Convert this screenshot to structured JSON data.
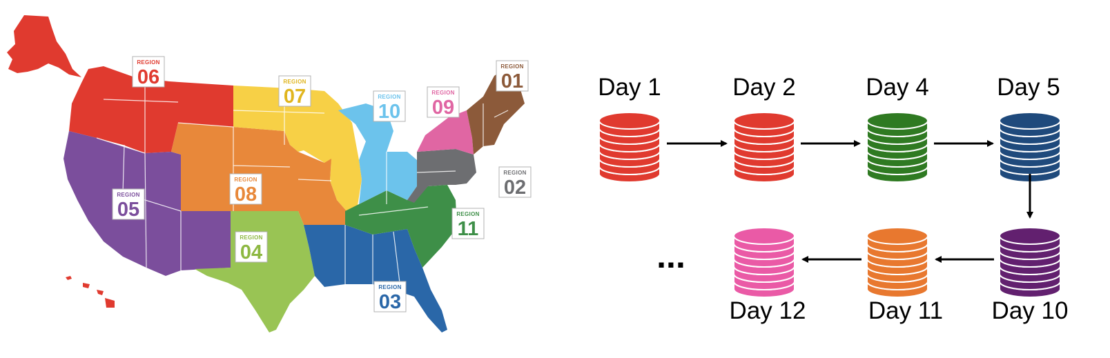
{
  "map": {
    "region_word": "REGION",
    "regions": [
      {
        "number": "01",
        "color": "#8c5a3a"
      },
      {
        "number": "02",
        "color": "#6d6e71"
      },
      {
        "number": "03",
        "color": "#2a67a8"
      },
      {
        "number": "04",
        "color": "#99c454"
      },
      {
        "number": "05",
        "color": "#7b4e9c"
      },
      {
        "number": "06",
        "color": "#e03a2f"
      },
      {
        "number": "07",
        "color": "#f7d046"
      },
      {
        "number": "08",
        "color": "#e8883a"
      },
      {
        "number": "09",
        "color": "#e066a3"
      },
      {
        "number": "10",
        "color": "#6cc3ec"
      },
      {
        "number": "11",
        "color": "#3e8f48"
      }
    ]
  },
  "timeline": {
    "days": [
      {
        "label": "Day 1",
        "color": "#e03a2f"
      },
      {
        "label": "Day 2",
        "color": "#e03a2f"
      },
      {
        "label": "Day 4",
        "color": "#2f7a22"
      },
      {
        "label": "Day 5",
        "color": "#1f4a7c"
      },
      {
        "label": "Day 10",
        "color": "#62206f"
      },
      {
        "label": "Day 11",
        "color": "#e8782f"
      },
      {
        "label": "Day 12",
        "color": "#ea5aa6"
      }
    ],
    "ellipsis": "..."
  }
}
